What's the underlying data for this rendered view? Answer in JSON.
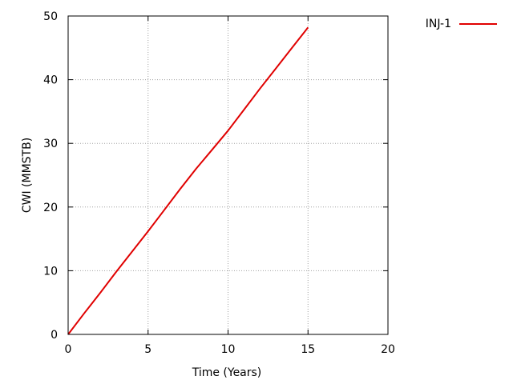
{
  "chart_data": {
    "type": "line",
    "title": "",
    "xlabel": "Time (Years)",
    "ylabel": "CWI (MMSTB)",
    "xlim": [
      0,
      20
    ],
    "ylim": [
      0,
      50
    ],
    "x_ticks": [
      "0",
      "5",
      "10",
      "15",
      "20"
    ],
    "y_ticks": [
      "0",
      "10",
      "20",
      "30",
      "40",
      "50"
    ],
    "grid": true,
    "legend_position": "top-right outside",
    "series": [
      {
        "name": "INJ-1",
        "color": "#e00000",
        "x": [
          0,
          1,
          2,
          3,
          4,
          5,
          6,
          7,
          8,
          9,
          10,
          11,
          12,
          13,
          14,
          15
        ],
        "y": [
          0,
          3.3,
          6.5,
          9.8,
          13.0,
          16.2,
          19.5,
          22.8,
          26.0,
          29.0,
          32.0,
          35.3,
          38.6,
          41.8,
          45.0,
          48.2
        ]
      }
    ]
  }
}
